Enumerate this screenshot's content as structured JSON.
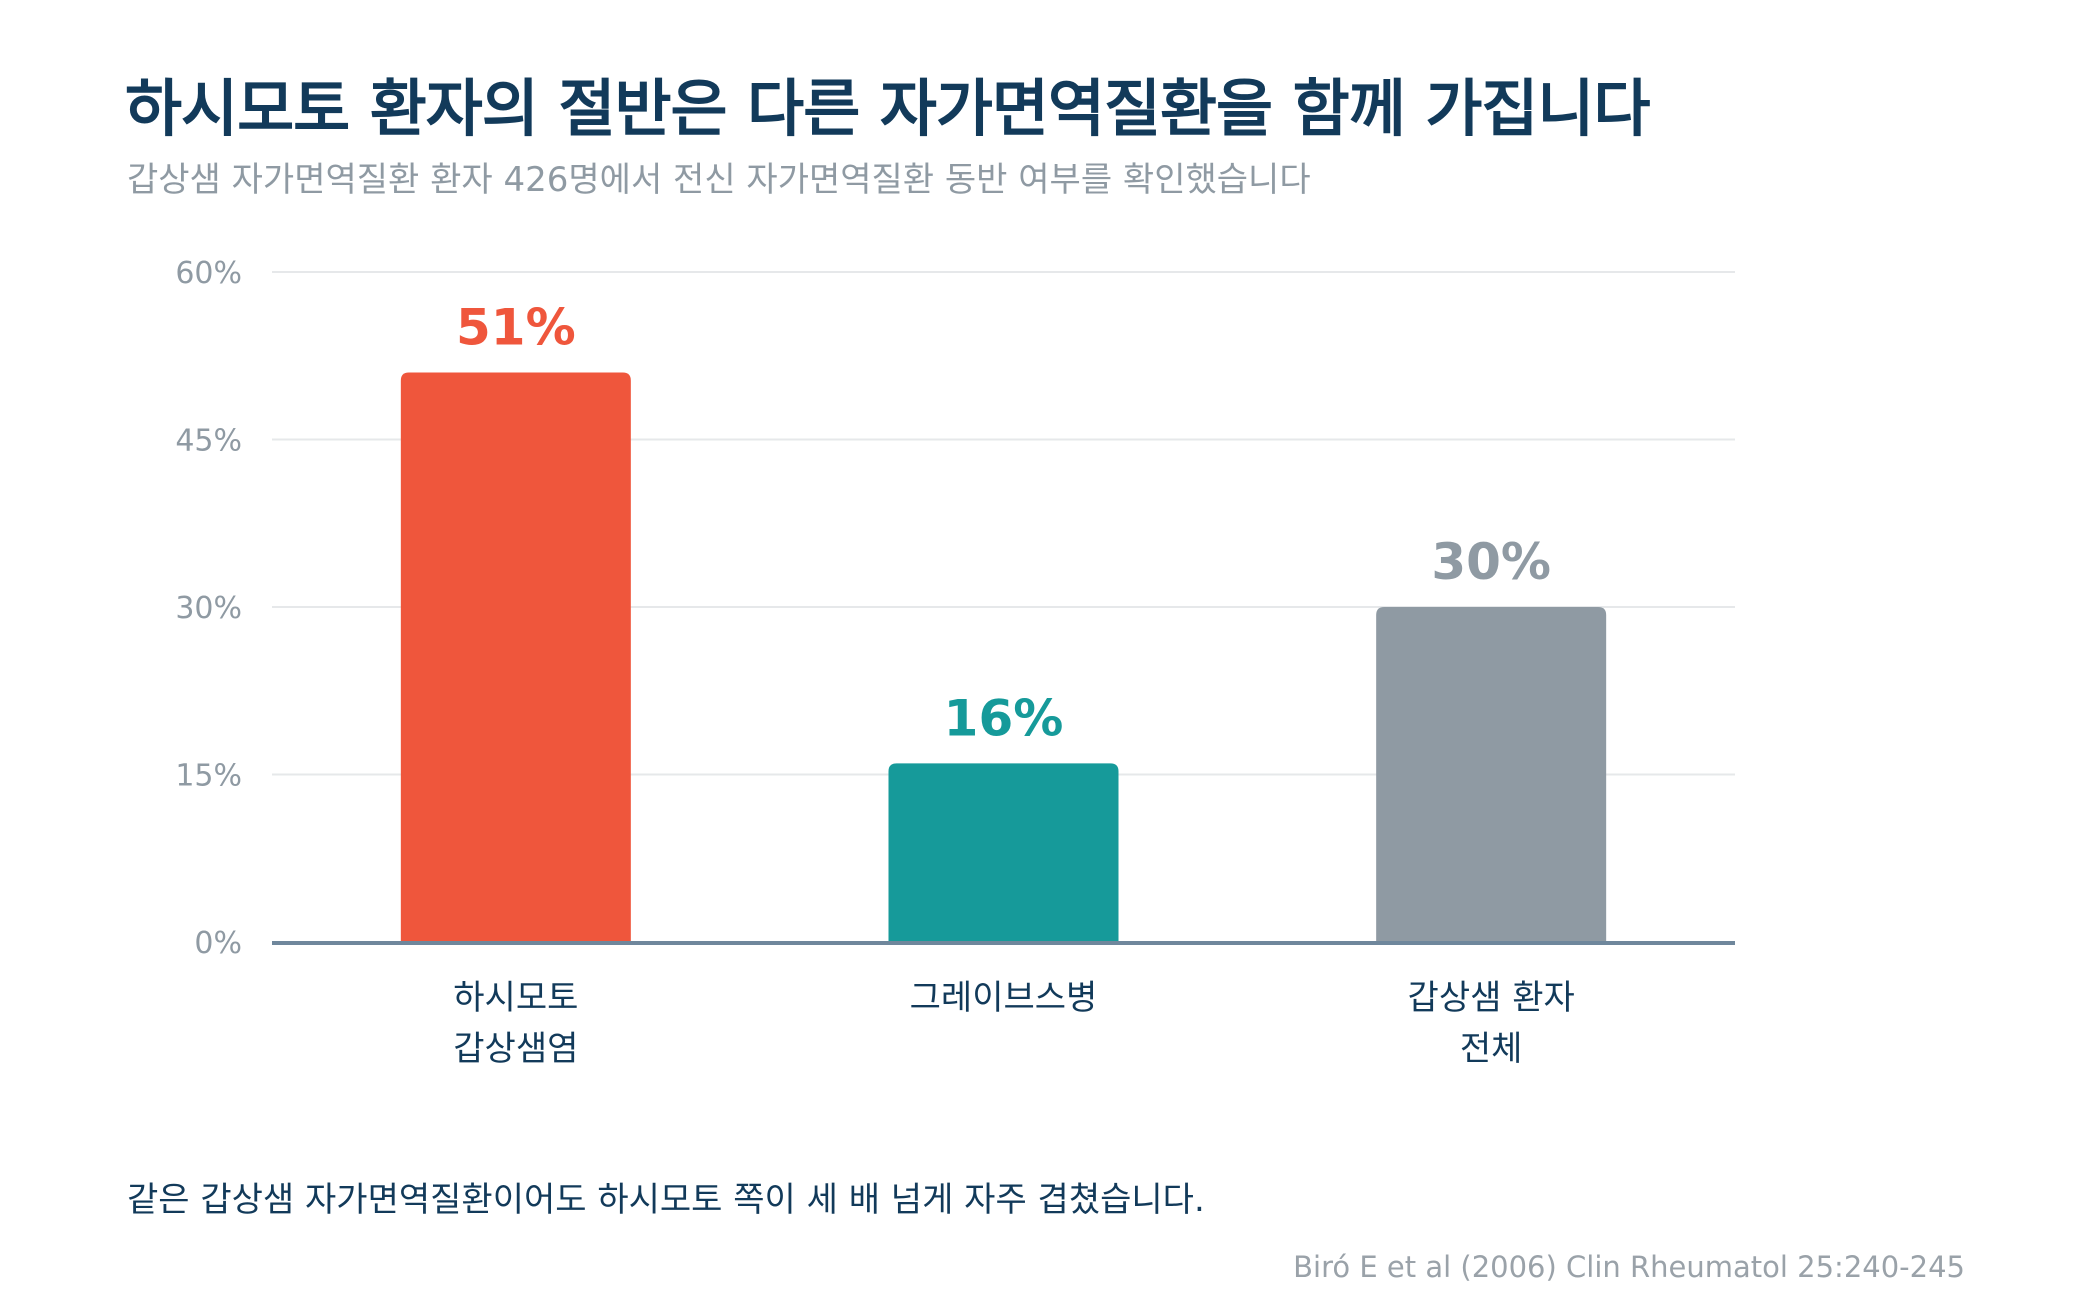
{
  "title": "하시모토 환자의 절반은 다른 자가면역질환을 함께 가집니다",
  "subtitle": "갑상샘 자가면역질환 환자 426명에서 전신 자가면역질환 동반 여부를 확인했습니다",
  "caption": "같은 갑상샘 자가면역질환이어도 하시모토 쪽이 세 배 넘게 자주 겹쳤습니다.",
  "source": "Biró E et al (2006) Clin Rheumatol 25:240-245",
  "colors": {
    "title": "#123a5a",
    "subtitle": "#8f9aa3",
    "gridline": "#e6e8ea",
    "baseline": "#6f879c",
    "tick_label": "#8f9aa3",
    "category_label": "#123a5a"
  },
  "chart_data": {
    "type": "bar",
    "categories": [
      [
        "하시모토",
        "갑상샘염"
      ],
      [
        "그레이브스병"
      ],
      [
        "갑상샘 환자",
        "전체"
      ]
    ],
    "values": [
      51,
      16,
      30
    ],
    "value_labels": [
      "51%",
      "16%",
      "30%"
    ],
    "bar_colors": [
      "#ef563c",
      "#169a9a",
      "#8f9aa3"
    ],
    "ylim": [
      0,
      60
    ],
    "y_ticks": [
      0,
      15,
      30,
      45,
      60
    ],
    "y_tick_labels": [
      "0%",
      "15%",
      "30%",
      "45%",
      "60%"
    ],
    "grid": true,
    "legend": "none"
  }
}
